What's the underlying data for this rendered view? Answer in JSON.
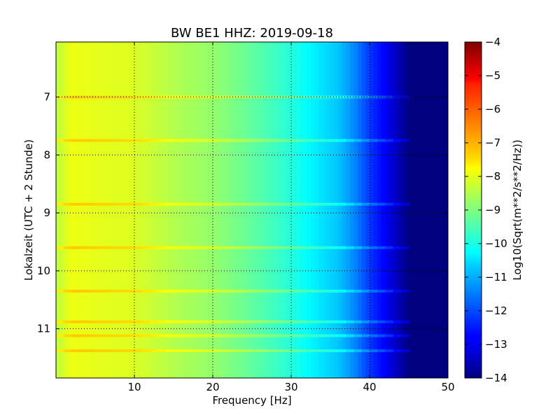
{
  "chart_data": {
    "type": "heatmap",
    "title": "BW BE1 HHZ: 2019-09-18",
    "xlabel": "Frequency [Hz]",
    "ylabel": "Lokalzeit (UTC + 2 Stunde)",
    "xlim": [
      0,
      50
    ],
    "ylim": [
      11.85,
      6.05
    ],
    "x_ticks": [
      10,
      20,
      30,
      40,
      50
    ],
    "y_ticks": [
      7,
      8,
      9,
      10,
      11
    ],
    "grid": true,
    "colormap": "jet",
    "colorbar": {
      "label": "Log10(Sqrt(m**2/s**2/Hz))",
      "range": [
        -14,
        -4
      ],
      "ticks": [
        -4,
        -5,
        -6,
        -7,
        -8,
        -9,
        -10,
        -11,
        -12,
        -13,
        -14
      ]
    },
    "frequency_profile": {
      "x": [
        0,
        2,
        5,
        10,
        15,
        20,
        25,
        30,
        33,
        36,
        38,
        40,
        42,
        43,
        44,
        45,
        46,
        50
      ],
      "values": [
        -8.4,
        -7.9,
        -8.0,
        -8.1,
        -8.5,
        -8.8,
        -9.3,
        -9.9,
        -10.4,
        -10.8,
        -11.4,
        -12.2,
        -12.8,
        -13.2,
        -13.6,
        -14.0,
        -14.0,
        -14.0
      ]
    },
    "bright_bands_hours": [
      7.0,
      7.75,
      8.85,
      9.6,
      10.35,
      10.88,
      11.12,
      11.38
    ]
  }
}
